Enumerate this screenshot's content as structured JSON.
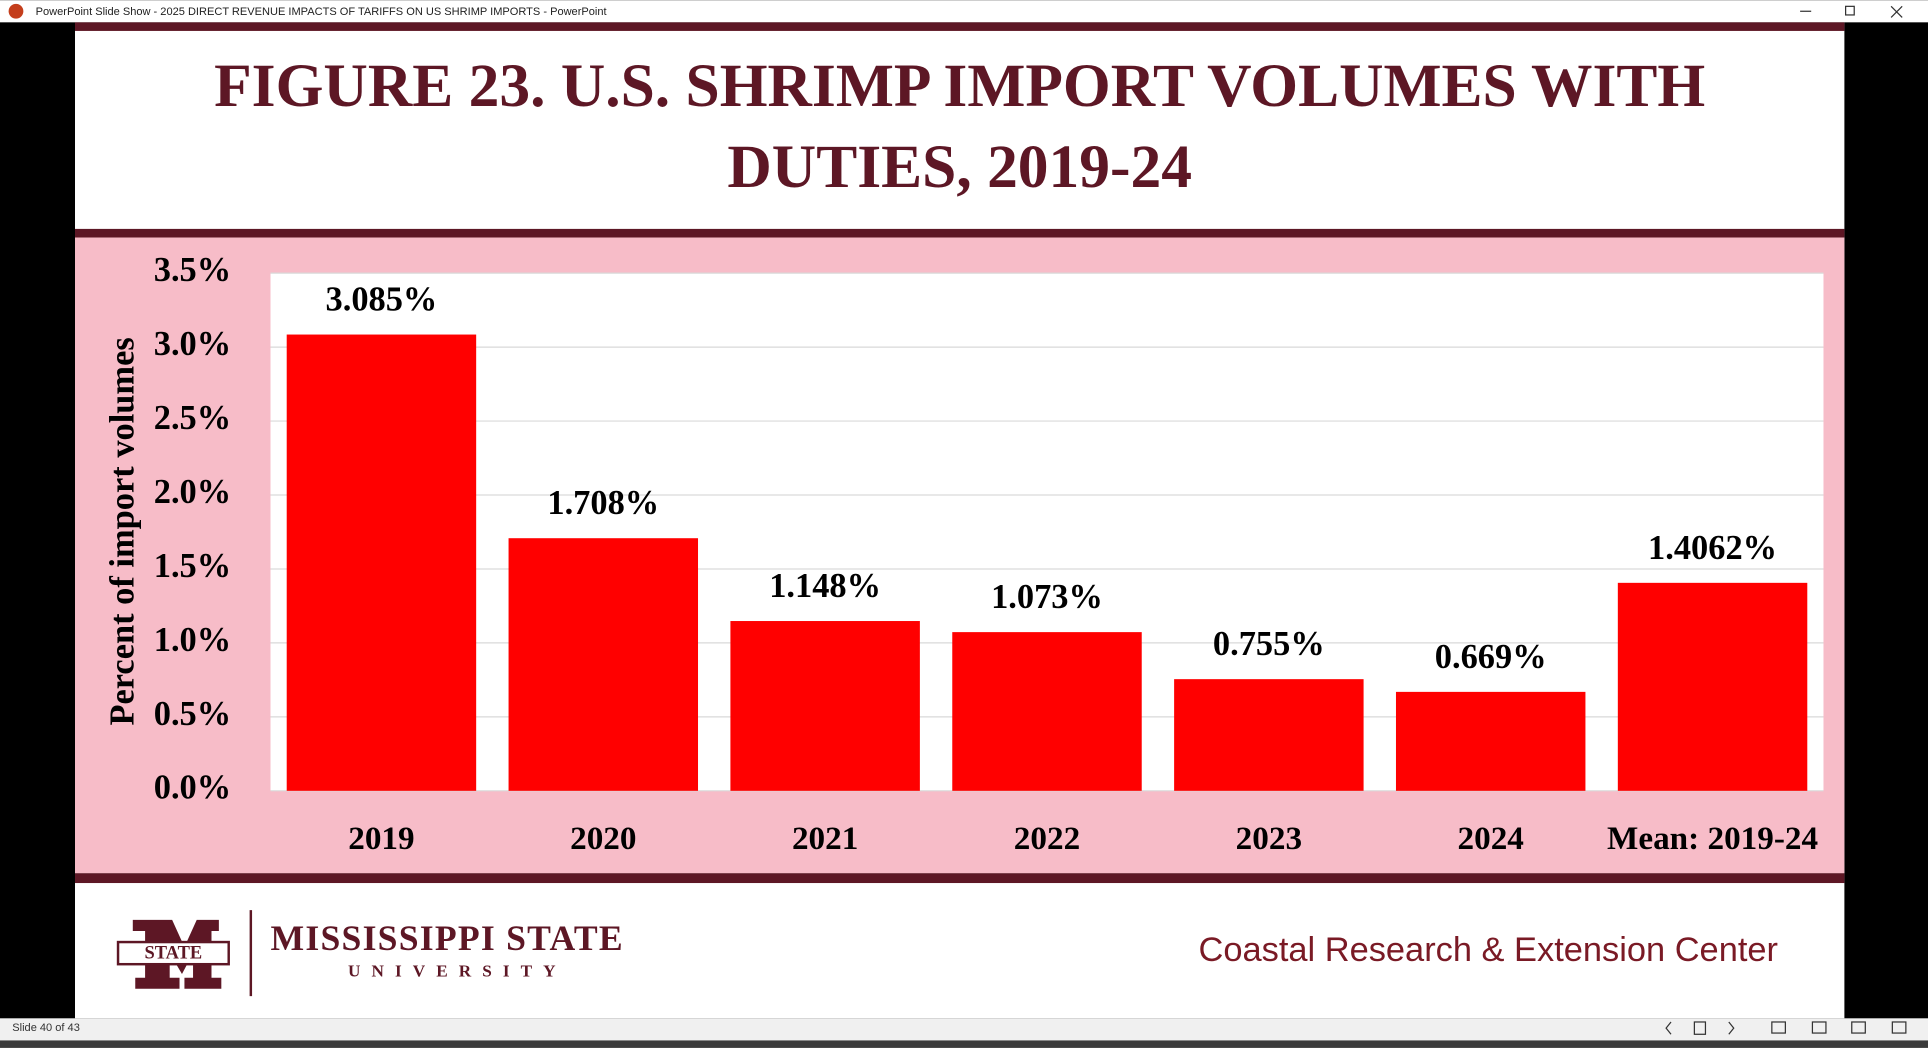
{
  "window": {
    "title": "PowerPoint Slide Show  -  2025 DIRECT REVENUE IMPACTS OF TARIFFS ON US SHRIMP IMPORTS - PowerPoint",
    "status": "Slide 40 of 43"
  },
  "footer": {
    "logo_badge": "STATE",
    "logo_name": "MISSISSIPPI STATE",
    "logo_sub": "UNIVERSITY",
    "center": "Coastal Research & Extension Center"
  },
  "chart_data": {
    "type": "bar",
    "title": "FIGURE 23. U.S. SHRIMP IMPORT VOLUMES WITH DUTIES, 2019-24",
    "y_label": "Percent of import volumes",
    "categories": [
      "2019",
      "2020",
      "2021",
      "2022",
      "2023",
      "2024",
      "Mean: 2019-24"
    ],
    "values": [
      3.085,
      1.708,
      1.148,
      1.073,
      0.755,
      0.669,
      1.4062
    ],
    "value_labels": [
      "3.085%",
      "1.708%",
      "1.148%",
      "1.073%",
      "0.755%",
      "0.669%",
      "1.4062%"
    ],
    "color": "#ff0000",
    "ylim": [
      0,
      3.5
    ],
    "yticks": [
      {
        "value": 0,
        "label": "0.0%"
      },
      {
        "value": 0.5,
        "label": "0.5%"
      },
      {
        "value": 1,
        "label": "1.0%"
      },
      {
        "value": 1.5,
        "label": "1.5%"
      },
      {
        "value": 2,
        "label": "2.0%"
      },
      {
        "value": 2.5,
        "label": "2.5%"
      },
      {
        "value": 3,
        "label": "3.0%"
      },
      {
        "value": 3.5,
        "label": "3.5%"
      }
    ],
    "grid": true
  }
}
